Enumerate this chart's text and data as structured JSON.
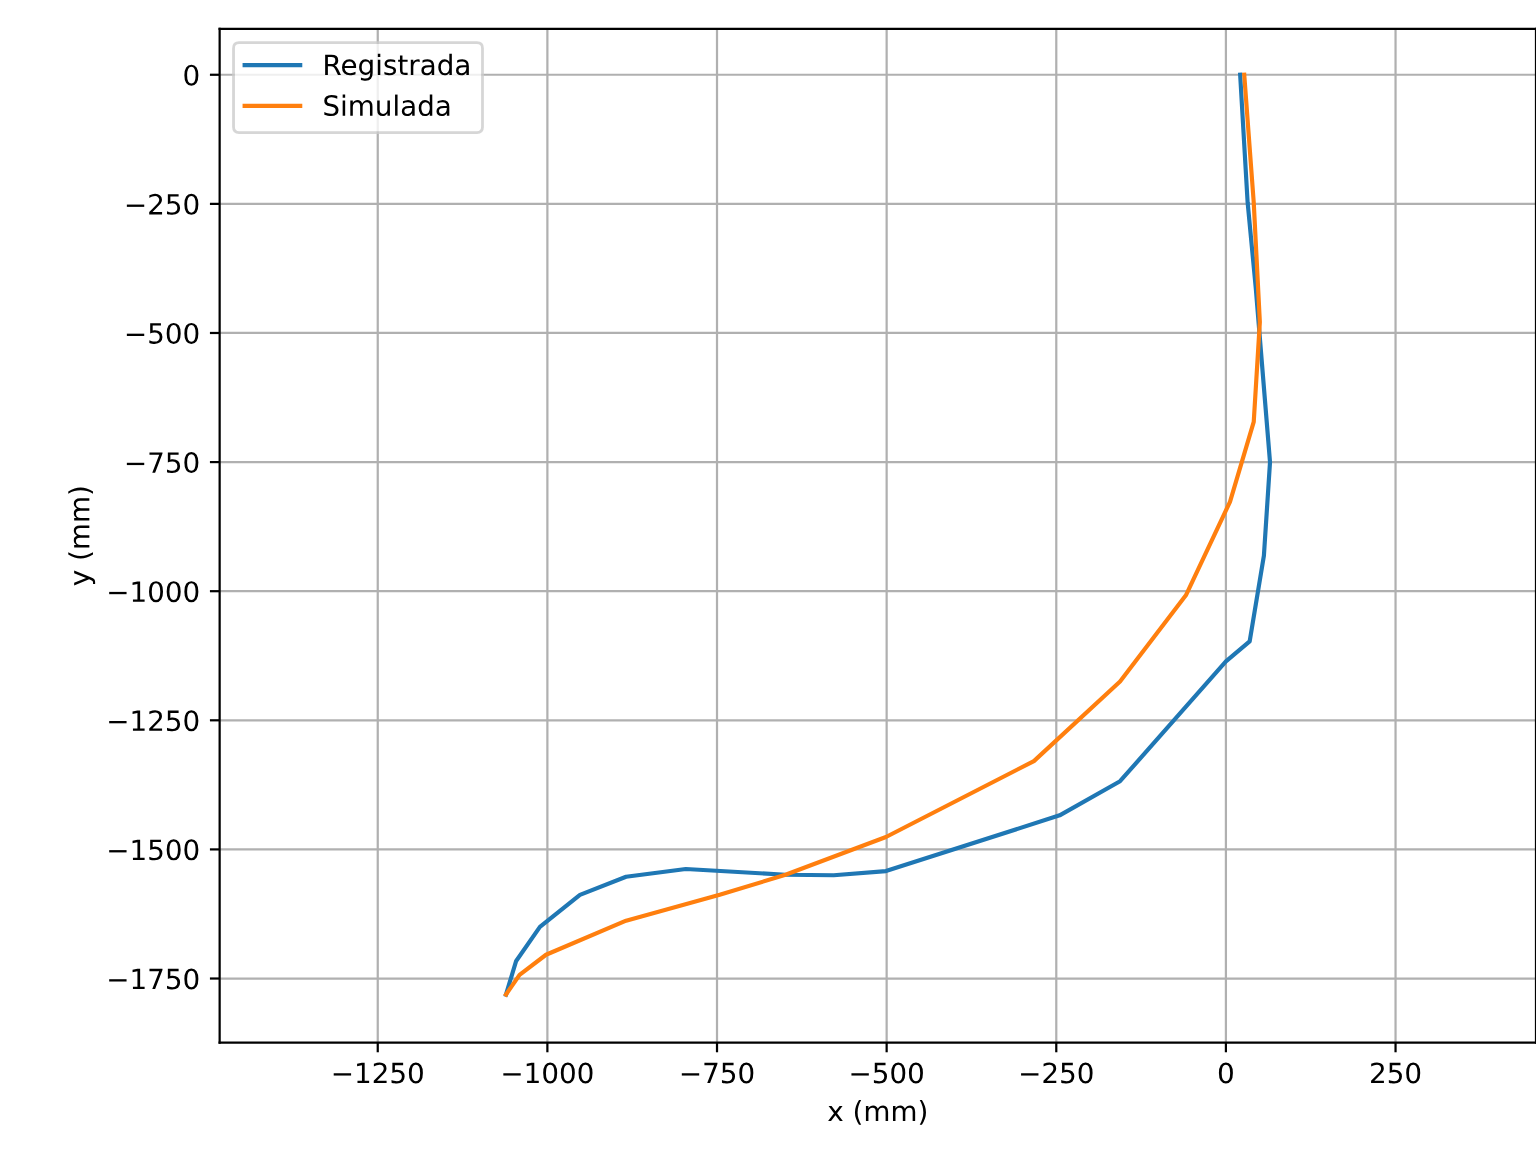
{
  "chart_data": {
    "type": "line",
    "xlabel": "x (mm)",
    "ylabel": "y (mm)",
    "xlim": [
      -1483,
      457
    ],
    "ylim": [
      -1874,
      89
    ],
    "xticks": [
      -1250,
      -1000,
      -750,
      -500,
      -250,
      0,
      250
    ],
    "yticks": [
      0,
      -250,
      -500,
      -750,
      -1000,
      -1250,
      -1500,
      -1750
    ],
    "grid": true,
    "legend": "top left",
    "series": [
      {
        "name": "Registrada",
        "color": "#1f77b4",
        "x": [
          21,
          32,
          44,
          65,
          56,
          35,
          0,
          -156,
          -245,
          -501,
          -578,
          -649,
          -796,
          -884,
          -952,
          -1011,
          -1046,
          -1061
        ],
        "values": [
          0,
          -247,
          -413,
          -750,
          -931,
          -1097,
          -1136,
          -1368,
          -1434,
          -1542,
          -1550,
          -1549,
          -1538,
          -1553,
          -1588,
          -1650,
          -1716,
          -1781
        ]
      },
      {
        "name": "Simulada",
        "color": "#ff7f0e",
        "x": [
          27,
          41,
          50,
          41,
          6,
          -59,
          -156,
          -283,
          -501,
          -649,
          -746,
          -884,
          -1002,
          -1041,
          -1061
        ],
        "values": [
          0,
          -247,
          -479,
          -672,
          -827,
          -1008,
          -1175,
          -1329,
          -1476,
          -1549,
          -1588,
          -1638,
          -1704,
          -1743,
          -1781
        ]
      }
    ]
  }
}
